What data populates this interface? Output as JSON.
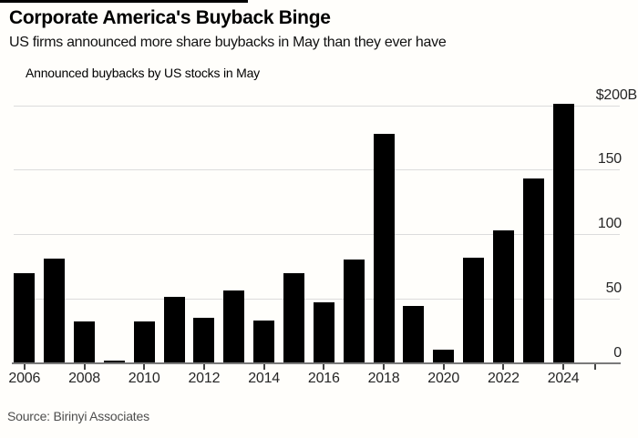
{
  "header": {
    "title": "Corporate America's Buyback Binge",
    "subtitle": "US firms announced more share buybacks in May than they ever have"
  },
  "legend": {
    "label": "Announced buybacks by US stocks in May",
    "swatch_color": "#000000"
  },
  "source": "Source: Birinyi Associates",
  "colors": {
    "bar": "#000000",
    "gridline": "#dcdcdc",
    "axis": "#7a7a7a",
    "tick": "#444444",
    "label": "#262626",
    "background": "#fffefb"
  },
  "chart_data": {
    "type": "bar",
    "title": "Corporate America's Buyback Binge",
    "subtitle": "US firms announced more share buybacks in May than they ever have",
    "series_name": "Announced buybacks by US stocks in May",
    "unit": "billions USD",
    "categories": [
      "2006",
      "2007",
      "2008",
      "2009",
      "2010",
      "2011",
      "2012",
      "2013",
      "2014",
      "2015",
      "2016",
      "2017",
      "2018",
      "2019",
      "2020",
      "2021",
      "2022",
      "2023",
      "2024"
    ],
    "values": [
      70,
      81,
      32,
      2,
      32,
      51,
      35,
      56,
      33,
      70,
      47,
      80,
      178,
      44,
      10,
      82,
      103,
      143,
      201
    ],
    "x_tick_labels": [
      "2006",
      "2008",
      "2010",
      "2012",
      "2014",
      "2016",
      "2018",
      "2020",
      "2022",
      "2024"
    ],
    "y_ticks": [
      {
        "label": "$200B",
        "value": 200
      },
      {
        "label": "150",
        "value": 150
      },
      {
        "label": "100",
        "value": 100
      },
      {
        "label": "50",
        "value": 50
      },
      {
        "label": "0",
        "value": 0
      }
    ],
    "ylim": [
      0,
      200
    ],
    "grid": true,
    "axis_label_side": "right",
    "legend_position": "top-left",
    "source": "Source: Birinyi Associates"
  }
}
